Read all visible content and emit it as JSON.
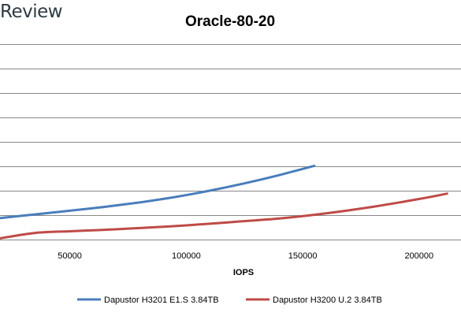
{
  "brand": "Review",
  "chart_data": {
    "type": "line",
    "title": "Oracle-80-20",
    "xlabel": "IOPS",
    "ylabel": "",
    "x_ticks": [
      50000,
      100000,
      150000,
      200000
    ],
    "x_tick_labels": [
      "50000",
      "100000",
      "150000",
      "200000"
    ],
    "xlim": [
      20000,
      218000
    ],
    "y_gridlines": 9,
    "grid": true,
    "legend_placement": "bottom",
    "series": [
      {
        "name": "Dapustor H3201 E1.S 3.84TB",
        "color": "#4a7ebb",
        "points": [
          [
            20000,
            0.88
          ],
          [
            30000,
            0.98
          ],
          [
            50000,
            1.18
          ],
          [
            65000,
            1.34
          ],
          [
            80000,
            1.52
          ],
          [
            95000,
            1.74
          ],
          [
            110000,
            2.0
          ],
          [
            125000,
            2.3
          ],
          [
            140000,
            2.64
          ],
          [
            155000,
            3.02
          ]
        ]
      },
      {
        "name": "Dapustor H3200 U.2 3.84TB",
        "color": "#be4b48",
        "points": [
          [
            20000,
            0.05
          ],
          [
            35000,
            0.27
          ],
          [
            50000,
            0.34
          ],
          [
            65000,
            0.4
          ],
          [
            80000,
            0.47
          ],
          [
            100000,
            0.58
          ],
          [
            120000,
            0.72
          ],
          [
            140000,
            0.86
          ],
          [
            160000,
            1.07
          ],
          [
            180000,
            1.34
          ],
          [
            200000,
            1.66
          ],
          [
            212000,
            1.88
          ]
        ]
      }
    ]
  }
}
